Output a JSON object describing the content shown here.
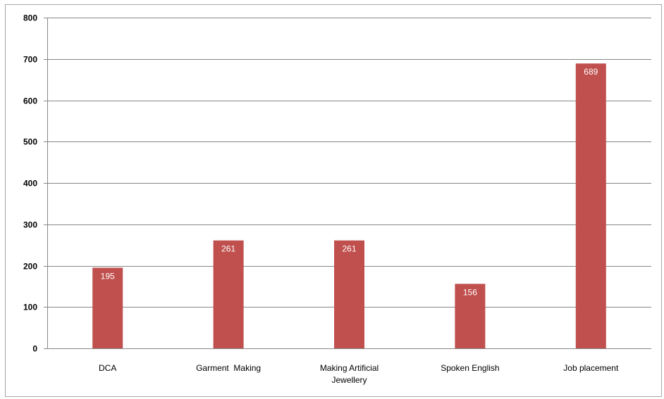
{
  "chart_data": {
    "type": "bar",
    "title": "",
    "xlabel": "",
    "ylabel": "",
    "ylim": [
      0,
      800
    ],
    "yticks": [
      0,
      100,
      200,
      300,
      400,
      500,
      600,
      700,
      800
    ],
    "grid": true,
    "legend": "none",
    "categories": [
      [
        "DCA"
      ],
      [
        "Garment  Making"
      ],
      [
        "Making Artificial",
        "Jewellery"
      ],
      [
        "Spoken English"
      ],
      [
        "Job placement"
      ]
    ],
    "values": [
      195,
      261,
      261,
      156,
      689
    ],
    "bar_color": "#c0504d",
    "gridline_color": "#868686",
    "data_label_color": "#ffffff"
  }
}
